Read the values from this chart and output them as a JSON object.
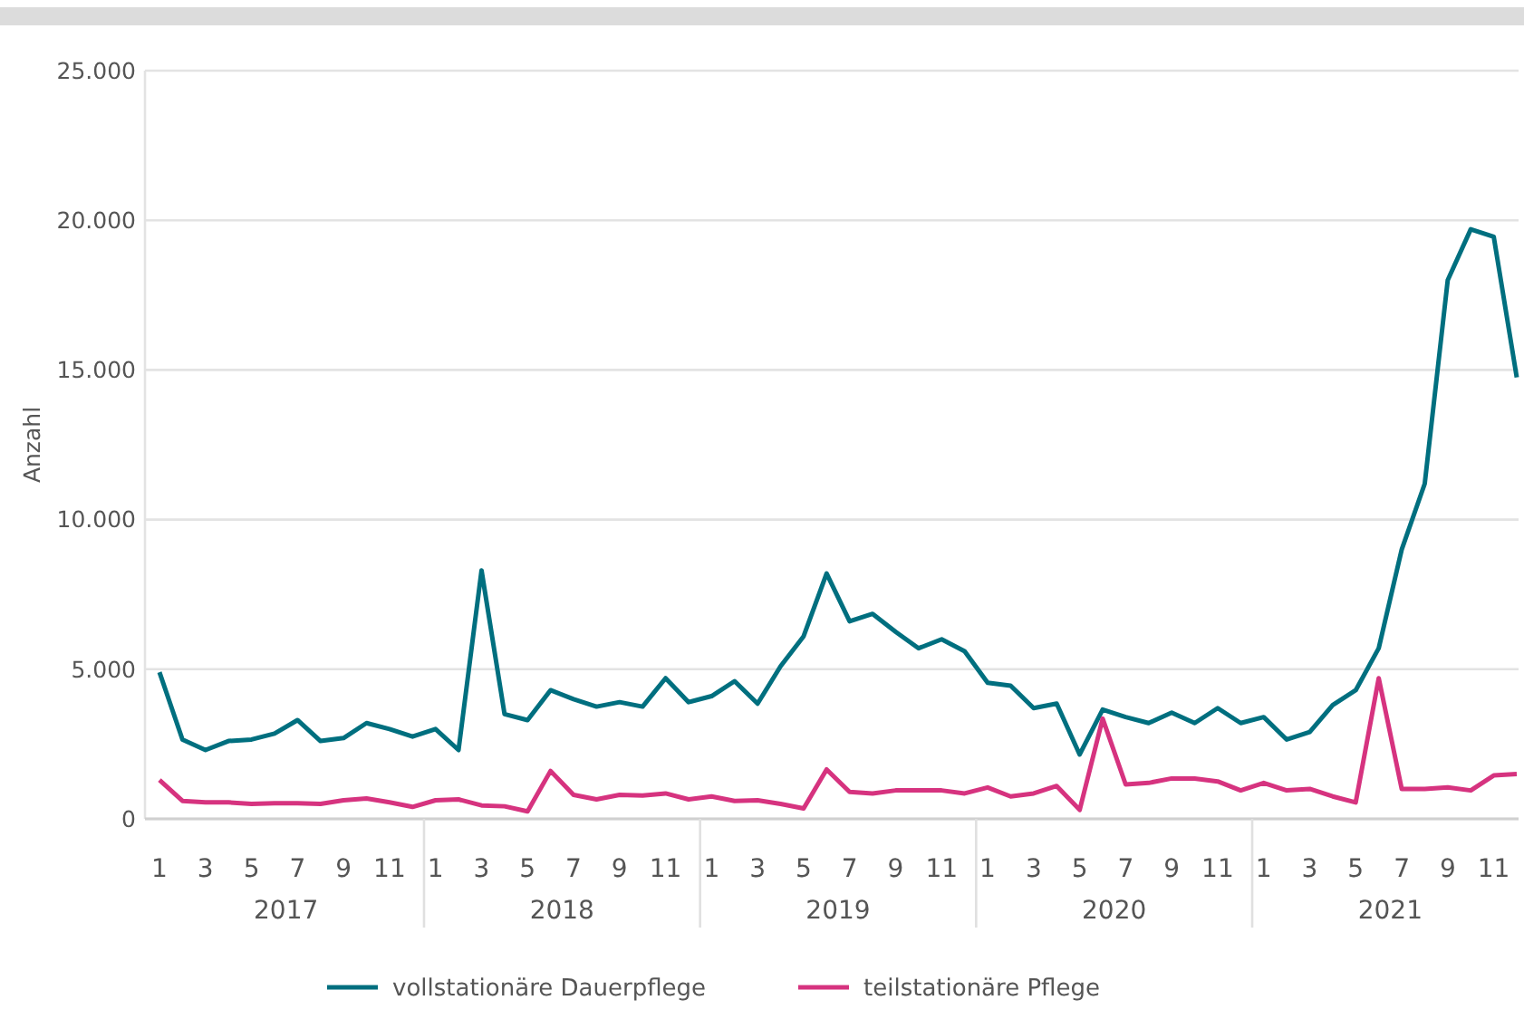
{
  "chart_data": {
    "type": "line",
    "ylabel": "Anzahl",
    "categories": [
      "1",
      null,
      "3",
      null,
      "5",
      null,
      "7",
      null,
      "9",
      null,
      "11",
      null,
      "1",
      null,
      "3",
      null,
      "5",
      null,
      "7",
      null,
      "9",
      null,
      "11",
      null,
      "1",
      null,
      "3",
      null,
      "5",
      null,
      "7",
      null,
      "9",
      null,
      "11",
      null,
      "1",
      null,
      "3",
      null,
      "5",
      null,
      "7",
      null,
      "9",
      null,
      "11",
      null,
      "1",
      null,
      "3",
      null,
      "5",
      null,
      "7",
      null,
      "9",
      null,
      "11",
      null
    ],
    "annotations": [
      "2017",
      "2018",
      "2019",
      "2020",
      "2021"
    ],
    "series": [
      {
        "name": "vollstationäre Dauerpflege",
        "color": "#006f7f",
        "values": [
          4900,
          2650,
          2300,
          2600,
          2650,
          2850,
          3300,
          2600,
          2700,
          3200,
          3000,
          2750,
          3000,
          2300,
          8300,
          3500,
          3300,
          4300,
          4000,
          3750,
          3900,
          3750,
          4700,
          3900,
          4100,
          4600,
          3850,
          5100,
          6100,
          8200,
          6600,
          6850,
          6250,
          5700,
          6000,
          5600,
          4550,
          4450,
          3700,
          3850,
          2150,
          3650,
          3400,
          3200,
          3550,
          3200,
          3700,
          3200,
          3400,
          2650,
          2900,
          3800,
          4300,
          5700,
          9000,
          11200,
          18000,
          19700,
          19450,
          14750
        ]
      },
      {
        "name": "teilstationäre Pflege",
        "color": "#d6337f",
        "values": [
          1300,
          600,
          550,
          550,
          500,
          520,
          520,
          500,
          620,
          680,
          550,
          400,
          620,
          650,
          450,
          420,
          250,
          1600,
          800,
          650,
          800,
          780,
          850,
          650,
          750,
          600,
          620,
          500,
          350,
          1650,
          900,
          850,
          950,
          950,
          950,
          850,
          1050,
          750,
          850,
          1100,
          300,
          3350,
          1150,
          1200,
          1350,
          1350,
          1250,
          950,
          1200,
          950,
          1000,
          750,
          550,
          4700,
          1000,
          1000,
          1050,
          950,
          1450,
          1500
        ]
      }
    ],
    "ylim": [
      0,
      25000
    ],
    "yticks": [
      {
        "value": 0,
        "label": "0"
      },
      {
        "value": 5000,
        "label": "5.000"
      },
      {
        "value": 10000,
        "label": "10.000"
      },
      {
        "value": 15000,
        "label": "15.000"
      },
      {
        "value": 20000,
        "label": "20.000"
      },
      {
        "value": 25000,
        "label": "25.000"
      }
    ],
    "grid": "y",
    "legend": "bottom",
    "marker": "none",
    "line_style": "solid"
  }
}
